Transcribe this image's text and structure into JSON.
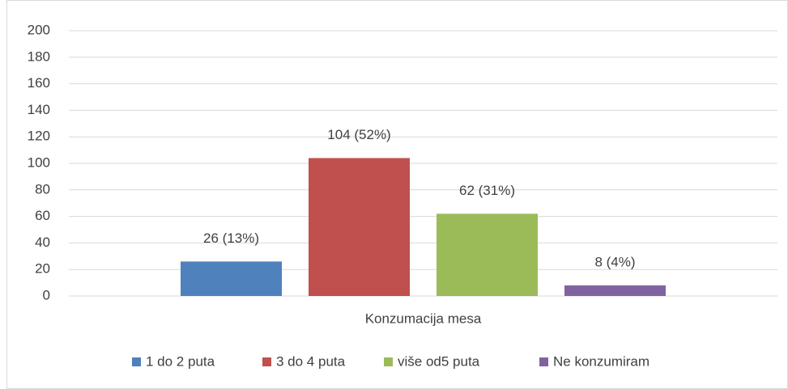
{
  "chart_data": {
    "type": "bar",
    "categories": [
      "Konzumacija mesa"
    ],
    "series": [
      {
        "name": "1 do 2 puta",
        "color": "#4f81bd",
        "values": [
          26
        ],
        "value_labels": [
          "26 (13%)"
        ]
      },
      {
        "name": "3 do 4 puta",
        "color": "#c0504d",
        "values": [
          104
        ],
        "value_labels": [
          "104 (52%)"
        ]
      },
      {
        "name": "više od5 puta",
        "color": "#9bbb59",
        "values": [
          62
        ],
        "value_labels": [
          "62 (31%)"
        ]
      },
      {
        "name": "Ne konzumiram",
        "color": "#8064a2",
        "values": [
          8
        ],
        "value_labels": [
          "8 (4%)"
        ]
      }
    ],
    "ylim": [
      0,
      200
    ],
    "yticks": [
      0,
      20,
      40,
      60,
      80,
      100,
      120,
      140,
      160,
      180,
      200
    ],
    "grid": true,
    "legend": "bottom"
  }
}
